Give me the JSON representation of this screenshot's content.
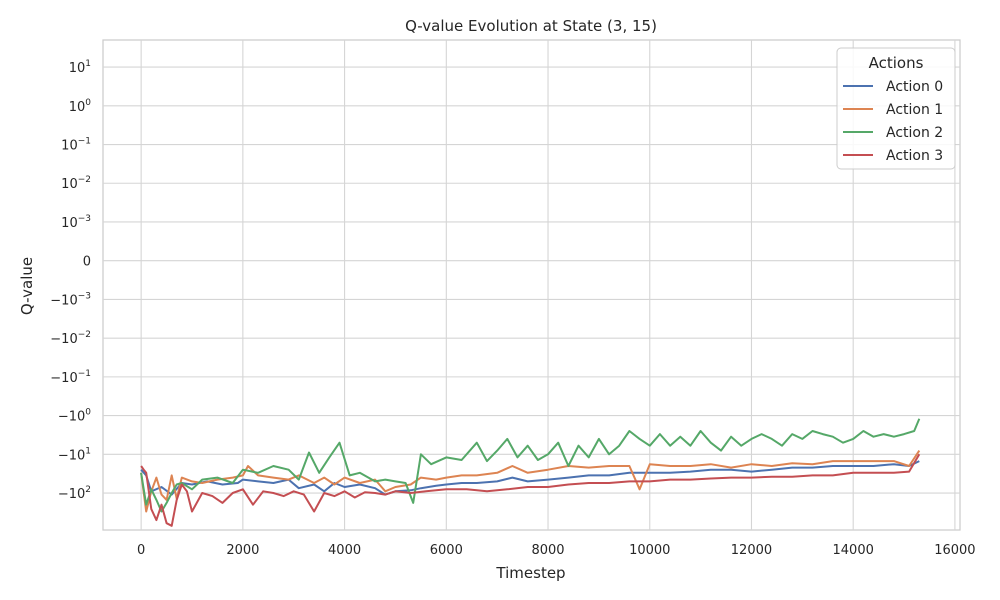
{
  "chart_data": {
    "type": "line",
    "title": "Q-value Evolution at State (3, 15)",
    "xlabel": "Timestep",
    "ylabel": "Q-value",
    "xlim": [
      -750,
      16100
    ],
    "x_ticks": [
      0,
      2000,
      4000,
      6000,
      8000,
      10000,
      12000,
      14000,
      16000
    ],
    "x_tick_labels": [
      "0",
      "2000",
      "4000",
      "6000",
      "8000",
      "10000",
      "12000",
      "14000",
      "16000"
    ],
    "y_scale": "symlog",
    "y_linthresh": 0.001,
    "ylim": [
      -900,
      50
    ],
    "y_ticks": [
      10,
      1,
      0.1,
      0.01,
      0.001,
      0,
      -0.001,
      -0.01,
      -0.1,
      -1,
      -10,
      -100
    ],
    "y_tick_labels": [
      {
        "base": "10",
        "exp": "1"
      },
      {
        "base": "10",
        "exp": "0"
      },
      {
        "base": "10",
        "exp": "−1"
      },
      {
        "base": "10",
        "exp": "−2"
      },
      {
        "base": "10",
        "exp": "−3"
      },
      {
        "base": "0",
        "exp": ""
      },
      {
        "base": "−10",
        "exp": "−3"
      },
      {
        "base": "−10",
        "exp": "−2"
      },
      {
        "base": "−10",
        "exp": "−1"
      },
      {
        "base": "−10",
        "exp": "0"
      },
      {
        "base": "−10",
        "exp": "1"
      },
      {
        "base": "−10",
        "exp": "2"
      }
    ],
    "grid": true,
    "legend": {
      "title": "Actions",
      "position": "top-right"
    },
    "series": [
      {
        "name": "Action 0",
        "color": "#4c72b0",
        "x": [
          0,
          100,
          200,
          400,
          600,
          800,
          1000,
          1300,
          1600,
          1900,
          2000,
          2300,
          2600,
          2900,
          3100,
          3400,
          3600,
          3800,
          4000,
          4300,
          4600,
          4800,
          5000,
          5300,
          5500,
          5800,
          6000,
          6300,
          6600,
          7000,
          7300,
          7600,
          8000,
          8400,
          8800,
          9200,
          9600,
          10000,
          10400,
          10800,
          11200,
          11600,
          12000,
          12400,
          12800,
          13200,
          13600,
          14000,
          14400,
          14800,
          15100,
          15300
        ],
        "y": [
          -25,
          -35,
          -90,
          -70,
          -110,
          -55,
          -60,
          -50,
          -60,
          -55,
          -45,
          -50,
          -55,
          -45,
          -75,
          -60,
          -90,
          -55,
          -70,
          -60,
          -75,
          -110,
          -90,
          -85,
          -75,
          -65,
          -60,
          -55,
          -55,
          -50,
          -40,
          -50,
          -45,
          -40,
          -35,
          -35,
          -30,
          -30,
          -30,
          -28,
          -25,
          -25,
          -28,
          -25,
          -22,
          -22,
          -20,
          -20,
          -20,
          -18,
          -20,
          -15
        ]
      },
      {
        "name": "Action 1",
        "color": "#dd8452",
        "x": [
          0,
          100,
          200,
          300,
          400,
          500,
          600,
          700,
          800,
          1000,
          1200,
          1500,
          1800,
          2000,
          2100,
          2300,
          2600,
          2900,
          3100,
          3400,
          3600,
          3800,
          4000,
          4300,
          4600,
          4800,
          5000,
          5300,
          5500,
          5800,
          6000,
          6300,
          6600,
          7000,
          7300,
          7600,
          8000,
          8400,
          8800,
          9200,
          9600,
          9800,
          10000,
          10400,
          10800,
          11200,
          11600,
          12000,
          12400,
          12800,
          13200,
          13600,
          14000,
          14400,
          14800,
          15100,
          15300
        ],
        "y": [
          -30,
          -300,
          -90,
          -40,
          -110,
          -150,
          -35,
          -140,
          -40,
          -50,
          -55,
          -45,
          -40,
          -35,
          -20,
          -35,
          -40,
          -45,
          -35,
          -55,
          -40,
          -60,
          -40,
          -55,
          -45,
          -90,
          -70,
          -60,
          -40,
          -45,
          -40,
          -35,
          -35,
          -30,
          -20,
          -30,
          -25,
          -20,
          -22,
          -20,
          -20,
          -80,
          -18,
          -20,
          -20,
          -18,
          -22,
          -18,
          -20,
          -17,
          -18,
          -15,
          -15,
          -15,
          -15,
          -20,
          -8
        ]
      },
      {
        "name": "Action 2",
        "color": "#55a868",
        "x": [
          0,
          100,
          200,
          300,
          400,
          500,
          600,
          700,
          800,
          1000,
          1200,
          1500,
          1800,
          2000,
          2300,
          2600,
          2900,
          3100,
          3300,
          3500,
          3700,
          3900,
          4100,
          4300,
          4600,
          4800,
          5000,
          5200,
          5350,
          5500,
          5700,
          6000,
          6300,
          6600,
          6800,
          7000,
          7200,
          7400,
          7600,
          7800,
          8000,
          8200,
          8400,
          8600,
          8800,
          9000,
          9200,
          9400,
          9600,
          9800,
          10000,
          10200,
          10400,
          10600,
          10800,
          11000,
          11200,
          11400,
          11600,
          11800,
          12000,
          12200,
          12400,
          12600,
          12800,
          13000,
          13200,
          13400,
          13600,
          13800,
          14000,
          14200,
          14400,
          14600,
          14800,
          15000,
          15200,
          15300
        ],
        "y": [
          -30,
          -200,
          -80,
          -150,
          -300,
          -180,
          -100,
          -60,
          -55,
          -80,
          -45,
          -40,
          -55,
          -25,
          -30,
          -20,
          -25,
          -45,
          -9,
          -30,
          -12,
          -5,
          -35,
          -30,
          -50,
          -45,
          -50,
          -55,
          -180,
          -10,
          -18,
          -12,
          -14,
          -5,
          -15,
          -8,
          -4,
          -12,
          -6,
          -14,
          -10,
          -5,
          -20,
          -6,
          -12,
          -4,
          -10,
          -6,
          -2.5,
          -4,
          -6,
          -3,
          -6,
          -3.5,
          -6,
          -2.5,
          -5,
          -8,
          -3.5,
          -6,
          -4,
          -3,
          -4,
          -6,
          -3,
          -4,
          -2.5,
          -3,
          -3.5,
          -5,
          -4,
          -2.5,
          -3.5,
          -3,
          -3.5,
          -3,
          -2.5,
          -1.2
        ]
      },
      {
        "name": "Action 3",
        "color": "#c44e52",
        "x": [
          0,
          50,
          100,
          200,
          300,
          400,
          500,
          600,
          700,
          800,
          900,
          1000,
          1200,
          1400,
          1600,
          1800,
          2000,
          2200,
          2400,
          2600,
          2800,
          3000,
          3200,
          3400,
          3600,
          3800,
          4000,
          4200,
          4400,
          4600,
          4800,
          5000,
          5300,
          5600,
          6000,
          6400,
          6800,
          7200,
          7600,
          8000,
          8400,
          8800,
          9200,
          9600,
          10000,
          10400,
          10800,
          11200,
          11600,
          12000,
          12400,
          12800,
          13200,
          13600,
          14000,
          14400,
          14800,
          15100,
          15300
        ],
        "y": [
          -20,
          -25,
          -30,
          -260,
          -500,
          -200,
          -600,
          -700,
          -150,
          -60,
          -90,
          -300,
          -100,
          -120,
          -180,
          -100,
          -80,
          -200,
          -90,
          -100,
          -120,
          -90,
          -110,
          -300,
          -100,
          -120,
          -90,
          -130,
          -95,
          -100,
          -110,
          -90,
          -100,
          -90,
          -80,
          -80,
          -90,
          -80,
          -70,
          -70,
          -60,
          -55,
          -55,
          -50,
          -50,
          -45,
          -45,
          -42,
          -40,
          -40,
          -38,
          -38,
          -35,
          -35,
          -30,
          -30,
          -30,
          -28,
          -10
        ]
      }
    ]
  }
}
